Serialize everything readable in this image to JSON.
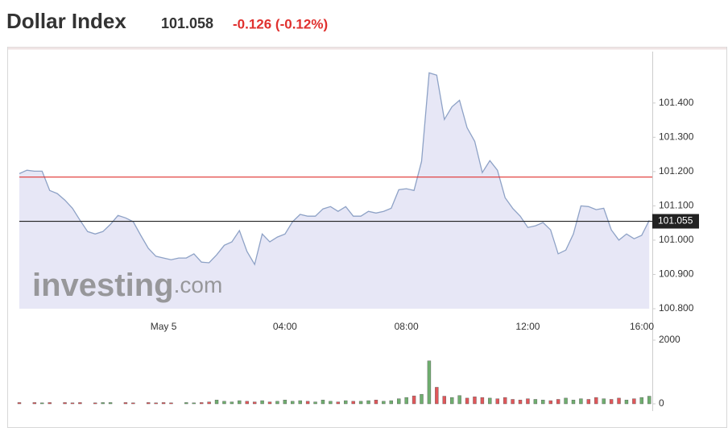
{
  "chart_data": [
    {
      "type": "area",
      "title": "Dollar Index",
      "price": "101.058",
      "change": "-0.126 (-0.12%)",
      "watermark": [
        "investing",
        ".com"
      ],
      "x": [
        -4.75,
        -4.5,
        -4.25,
        -4,
        -3.75,
        -3.5,
        -3.25,
        -3,
        -2.75,
        -2.5,
        -2.25,
        -2,
        -1.75,
        -1.5,
        -1.25,
        -1,
        -0.75,
        -0.5,
        -0.25,
        0,
        0.25,
        0.5,
        0.75,
        1,
        1.25,
        1.5,
        1.75,
        2,
        2.25,
        2.5,
        2.75,
        3,
        3.25,
        3.5,
        3.75,
        4,
        4.25,
        4.5,
        4.75,
        5,
        5.25,
        5.5,
        5.75,
        6,
        6.25,
        6.5,
        6.75,
        7,
        7.25,
        7.5,
        7.75,
        8,
        8.25,
        8.5,
        8.75,
        9,
        9.25,
        9.5,
        9.75,
        10,
        10.25,
        10.5,
        10.75,
        11,
        11.25,
        11.5,
        11.75,
        12,
        12.25,
        12.5,
        12.75,
        13,
        13.25,
        13.5,
        13.75,
        14,
        14.25,
        14.5,
        14.75,
        15,
        15.25,
        15.5,
        15.75,
        16
      ],
      "values": [
        101.194,
        101.204,
        101.201,
        101.201,
        101.145,
        101.136,
        101.117,
        101.093,
        101.058,
        101.025,
        101.018,
        101.025,
        101.046,
        101.072,
        101.065,
        101.054,
        101.014,
        100.976,
        100.953,
        100.948,
        100.943,
        100.948,
        100.948,
        100.96,
        100.936,
        100.934,
        100.957,
        100.985,
        100.995,
        101.028,
        100.967,
        100.929,
        101.018,
        100.995,
        101.009,
        101.018,
        101.054,
        101.075,
        101.07,
        101.07,
        101.091,
        101.098,
        101.084,
        101.098,
        101.07,
        101.07,
        101.084,
        101.079,
        101.084,
        101.093,
        101.147,
        101.15,
        101.145,
        101.23,
        101.488,
        101.481,
        101.352,
        101.389,
        101.408,
        101.328,
        101.288,
        101.197,
        101.232,
        101.204,
        101.124,
        101.093,
        101.07,
        101.037,
        101.042,
        101.051,
        101.03,
        100.96,
        100.971,
        101.018,
        101.1,
        101.098,
        101.089,
        101.093,
        101.03,
        101.0,
        101.018,
        101.004,
        101.014,
        101.058
      ],
      "color": "#8ea2c6",
      "fill": "#e7e7f6",
      "xlim": [
        -4.75,
        16.1
      ],
      "xticks": [
        {
          "value": 0,
          "label": "May 5"
        },
        {
          "value": 4,
          "label": "04:00"
        },
        {
          "value": 8,
          "label": "08:00"
        },
        {
          "value": 12,
          "label": "12:00"
        },
        {
          "value": 16,
          "label": "16:00"
        }
      ],
      "ylim": [
        100.8,
        101.55
      ],
      "yticks": [
        {
          "value": 100.8,
          "label": "100.800"
        },
        {
          "value": 100.9,
          "label": "100.900"
        },
        {
          "value": 101.0,
          "label": "101.000"
        },
        {
          "value": 101.1,
          "label": "101.100"
        },
        {
          "value": 101.2,
          "label": "101.200"
        },
        {
          "value": 101.3,
          "label": "101.300"
        },
        {
          "value": 101.4,
          "label": "101.400"
        }
      ],
      "hlines": [
        {
          "value": 101.184,
          "color": "#e0312f"
        },
        {
          "value": 101.055,
          "color": "#222222"
        }
      ]
    },
    {
      "type": "volume",
      "x": [
        -4.75,
        -4.5,
        -4.25,
        -4,
        -3.75,
        -3.5,
        -3.25,
        -3,
        -2.75,
        -2.5,
        -2.25,
        -2,
        -1.75,
        -1.5,
        -1.25,
        -1,
        -0.75,
        -0.5,
        -0.25,
        0,
        0.25,
        0.5,
        0.75,
        1,
        1.25,
        1.5,
        1.75,
        2,
        2.25,
        2.5,
        2.75,
        3,
        3.25,
        3.5,
        3.75,
        4,
        4.25,
        4.5,
        4.75,
        5,
        5.25,
        5.5,
        5.75,
        6,
        6.25,
        6.5,
        6.75,
        7,
        7.25,
        7.5,
        7.75,
        8,
        8.25,
        8.5,
        8.75,
        9,
        9.25,
        9.5,
        9.75,
        10,
        10.25,
        10.5,
        10.75,
        11,
        11.25,
        11.5,
        11.75,
        12,
        12.25,
        12.5,
        12.75,
        13,
        13.25,
        13.5,
        13.75,
        14,
        14.25,
        14.5,
        14.75,
        15,
        15.25,
        15.5,
        15.75,
        16
      ],
      "values": [
        40,
        0,
        40,
        30,
        40,
        0,
        40,
        30,
        40,
        0,
        30,
        40,
        40,
        0,
        40,
        30,
        0,
        40,
        30,
        40,
        30,
        0,
        40,
        30,
        40,
        60,
        120,
        80,
        60,
        100,
        80,
        60,
        100,
        60,
        80,
        120,
        80,
        100,
        80,
        60,
        120,
        80,
        60,
        100,
        80,
        80,
        100,
        120,
        80,
        100,
        160,
        200,
        250,
        300,
        1350,
        520,
        240,
        200,
        260,
        180,
        220,
        200,
        180,
        160,
        200,
        140,
        120,
        160,
        140,
        120,
        100,
        140,
        180,
        120,
        160,
        140,
        200,
        160,
        140,
        180,
        120,
        160,
        200,
        240
      ],
      "up_color": "#6fae6f",
      "down_color": "#e0575a",
      "xlim": [
        -4.75,
        16.1
      ],
      "ylim": [
        0,
        2000
      ],
      "yticks": [
        0,
        2000
      ]
    }
  ]
}
